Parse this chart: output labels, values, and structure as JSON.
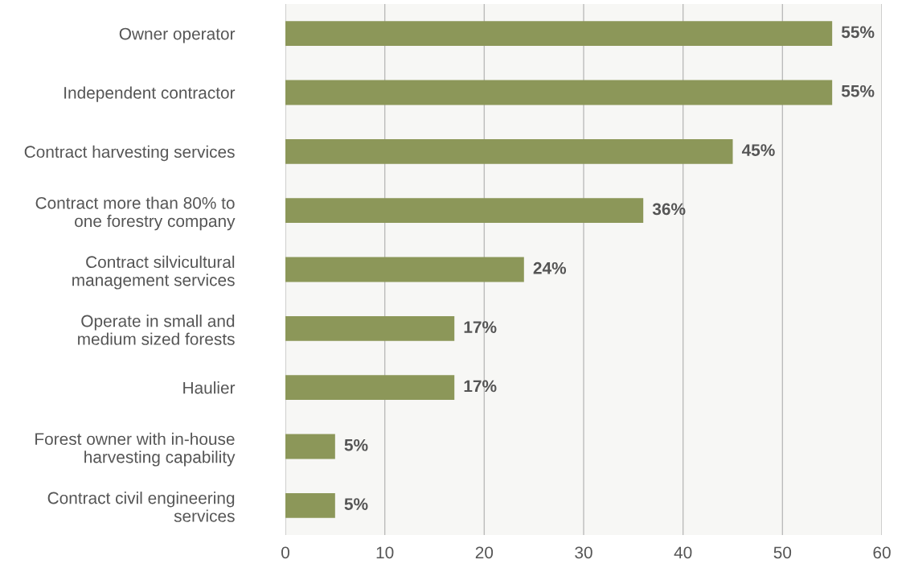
{
  "chart_data": {
    "type": "bar",
    "orientation": "horizontal",
    "categories": [
      "Owner operator",
      "Independent contractor",
      "Contract harvesting services",
      "Contract more than 80% to\none forestry company",
      "Contract silvicultural\nmanagement services",
      "Operate in small and\nmedium sized forests",
      "Haulier",
      "Forest owner with in-house\nharvesting capability",
      "Contract civil engineering\nservices"
    ],
    "values": [
      55,
      55,
      45,
      36,
      24,
      17,
      17,
      5,
      5
    ],
    "value_labels": [
      "55%",
      "55%",
      "45%",
      "36%",
      "24%",
      "17%",
      "17%",
      "5%",
      "5%"
    ],
    "color": "#8c9759",
    "xlim": [
      0,
      60
    ],
    "xticks": [
      0,
      10,
      20,
      30,
      40,
      50,
      60
    ],
    "grid": "x"
  }
}
